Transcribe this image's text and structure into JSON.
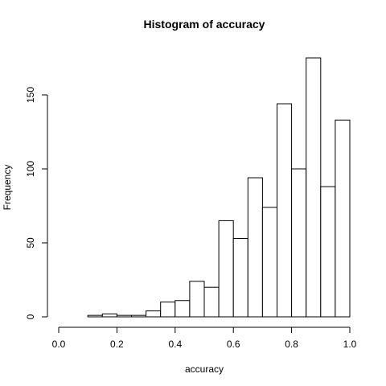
{
  "chart_data": {
    "type": "bar",
    "title": "Histogram of accuracy",
    "xlabel": "accuracy",
    "ylabel": "Frequency",
    "bin_edges": [
      0.0,
      0.05,
      0.1,
      0.15,
      0.2,
      0.25,
      0.3,
      0.35,
      0.4,
      0.45,
      0.5,
      0.55,
      0.6,
      0.65,
      0.7,
      0.75,
      0.8,
      0.85,
      0.9,
      0.95,
      1.0
    ],
    "values": [
      0,
      0,
      1,
      2,
      1,
      1,
      4,
      10,
      11,
      24,
      20,
      65,
      53,
      94,
      74,
      144,
      100,
      175,
      88,
      133
    ],
    "xlim": [
      0.0,
      1.0
    ],
    "ylim": [
      0,
      175
    ],
    "x_ticks": [
      0.0,
      0.2,
      0.4,
      0.6,
      0.8,
      1.0
    ],
    "x_tick_labels": [
      "0.0",
      "0.2",
      "0.4",
      "0.6",
      "0.8",
      "1.0"
    ],
    "y_ticks": [
      0,
      50,
      100,
      150
    ],
    "y_tick_labels": [
      "0",
      "50",
      "100",
      "150"
    ],
    "grid": false
  }
}
